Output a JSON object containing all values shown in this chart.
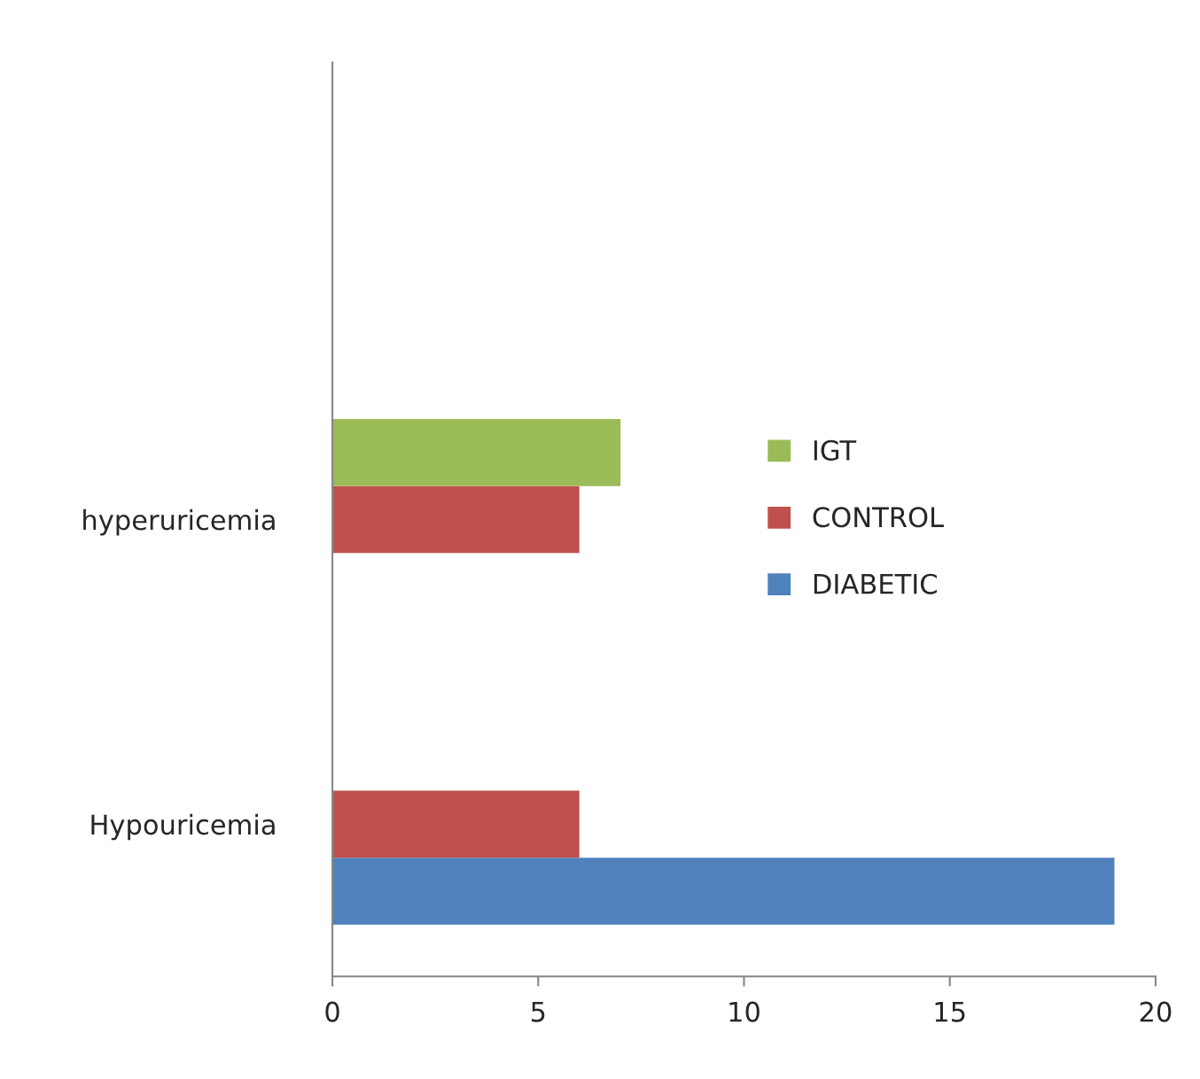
{
  "chart_data": {
    "type": "bar",
    "orientation": "horizontal",
    "categories": [
      null,
      "hyperuricemia",
      "Hypouricemia"
    ],
    "series": [
      {
        "name": "DIABETIC",
        "color": "#4f81bd",
        "values": [
          null,
          null,
          19
        ]
      },
      {
        "name": "CONTROL",
        "color": "#c0504d",
        "values": [
          null,
          6,
          6
        ]
      },
      {
        "name": "IGT",
        "color": "#9bbb59",
        "values": [
          null,
          7,
          null
        ]
      }
    ],
    "xlim": [
      0,
      20
    ],
    "xticks": [
      0,
      5,
      10,
      15,
      20
    ],
    "grid": false,
    "legend": "right"
  }
}
